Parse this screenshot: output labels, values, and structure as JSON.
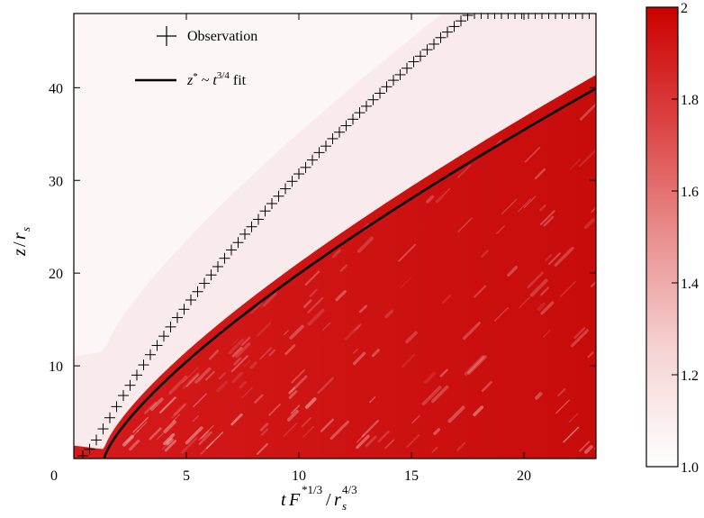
{
  "chart_data": {
    "type": "heatmap",
    "xlabel": "tF*1/3/rs4/3",
    "ylabel": "z/rs",
    "xlim": [
      0,
      23.2
    ],
    "ylim": [
      0,
      48
    ],
    "x_ticks": [
      0,
      5,
      10,
      15,
      20
    ],
    "y_ticks": [
      10,
      20,
      30,
      40
    ],
    "colorbar": {
      "range": [
        1.0,
        2.0
      ],
      "ticks": [
        "1.0",
        "1.2",
        "1.4",
        "1.6",
        "1.8",
        "2"
      ],
      "color_low": "#ffffff",
      "color_high": "#cc0000"
    },
    "legend": {
      "placement": "top-left",
      "entries": [
        {
          "label": "Observation",
          "marker": "plus"
        },
        {
          "label": "z* ~ t3/4 fit",
          "marker": "line"
        }
      ]
    },
    "series": [
      {
        "name": "Observation",
        "marker": "plus",
        "x": [
          0.4,
          0.7,
          1.0,
          1.3,
          1.6,
          1.9,
          2.2,
          2.5,
          2.8,
          3.1,
          3.4,
          3.7,
          4.0,
          4.3,
          4.6,
          4.9,
          5.2,
          5.5,
          5.8,
          6.1,
          6.4,
          6.7,
          7.0,
          7.3,
          7.6,
          7.9,
          8.2,
          8.5,
          8.8,
          9.1,
          9.4,
          9.7,
          10.0,
          10.3,
          10.6,
          10.9,
          11.2,
          11.5,
          11.8,
          12.1,
          12.4,
          12.7,
          13.0,
          13.3,
          13.6,
          13.9,
          14.2,
          14.5,
          14.8,
          15.1,
          15.4,
          15.7,
          16.0,
          16.3,
          16.6,
          16.9,
          17.2,
          17.5,
          17.8,
          18.1,
          18.4,
          18.7,
          19.0,
          19.3,
          19.6,
          19.9,
          20.2,
          20.5,
          20.8,
          21.1,
          21.4,
          21.7,
          22.0,
          22.3,
          22.6,
          22.9
        ],
        "y": [
          0.3,
          1.0,
          2.0,
          3.2,
          4.4,
          5.6,
          6.8,
          7.9,
          9.0,
          10.1,
          11.2,
          12.2,
          13.2,
          14.2,
          15.2,
          16.1,
          17.1,
          18.0,
          18.9,
          19.8,
          20.7,
          21.6,
          22.5,
          23.3,
          24.2,
          25.0,
          25.8,
          26.7,
          27.5,
          28.3,
          29.1,
          29.9,
          30.7,
          31.4,
          32.2,
          33.0,
          33.7,
          34.5,
          35.2,
          35.9,
          36.6,
          37.3,
          38.0,
          38.7,
          39.4,
          40.1,
          40.8,
          41.4,
          42.1,
          42.8,
          43.4,
          44.1,
          44.7,
          45.4,
          46.0,
          46.6,
          47.2,
          47.8,
          48.0,
          48.0,
          48.0,
          48.0,
          48.0,
          48.0,
          48.0,
          48.0,
          48.0,
          48.0,
          48.0,
          48.0,
          48.0,
          48.0,
          48.0,
          48.0,
          48.0,
          48.0
        ]
      },
      {
        "name": "z* ~ t3/4 fit",
        "marker": "line",
        "formula": "z = 3.95 * (t - 1.35)^0.75"
      }
    ]
  }
}
